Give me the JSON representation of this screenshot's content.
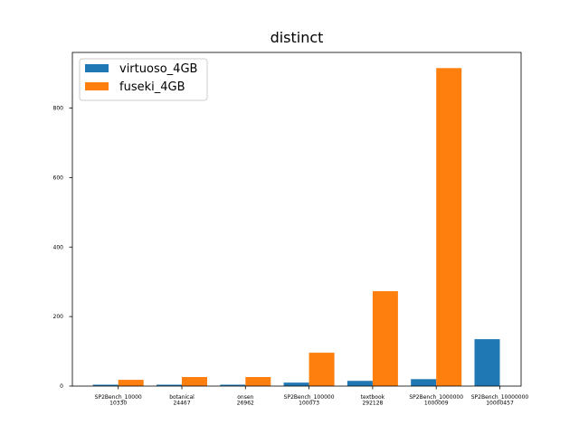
{
  "chart_data": {
    "type": "bar",
    "title": "distinct",
    "xlabel": "",
    "ylabel": "",
    "categories": [
      [
        "SP2Bench_10000",
        "10330"
      ],
      [
        "botanical",
        "24467"
      ],
      [
        "onsen",
        "26962"
      ],
      [
        "SP2Bench_100000",
        "100073"
      ],
      [
        "textbook",
        "292128"
      ],
      [
        "SP2Bench_1000000",
        "1000009"
      ],
      [
        "SP2Bench_10000000",
        "10000457"
      ]
    ],
    "series": [
      {
        "name": "virtuoso_4GB",
        "color": "#1f77b4",
        "values": [
          4,
          4,
          4,
          10,
          15,
          20,
          135
        ]
      },
      {
        "name": "fuseki_4GB",
        "color": "#ff7f0e",
        "values": [
          18,
          26,
          26,
          96,
          273,
          915,
          null
        ]
      }
    ],
    "ylim": [
      0,
      960
    ],
    "yticks": [
      0,
      200,
      400,
      600,
      800
    ],
    "grid": false,
    "legend_position": "top-left"
  }
}
